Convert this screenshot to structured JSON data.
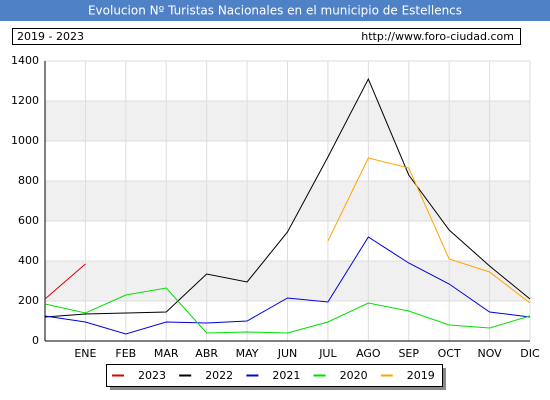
{
  "chart_data": {
    "type": "line",
    "title": "Evolucion Nº Turistas Nacionales en el municipio de Estellencs",
    "subtitle": "2019 - 2023",
    "source": "http://www.foro-ciudad.com",
    "categories": [
      null,
      "ENE",
      "FEB",
      "MAR",
      "ABR",
      "MAY",
      "JUN",
      "JUL",
      "AGO",
      "SEP",
      "OCT",
      "NOV",
      "DIC"
    ],
    "series": [
      {
        "name": "2023",
        "color": "#e00000",
        "values": [
          210,
          385,
          null,
          null,
          null,
          null,
          null,
          null,
          null,
          null,
          null,
          null,
          null
        ]
      },
      {
        "name": "2022",
        "color": "#000000",
        "values": [
          120,
          135,
          140,
          145,
          335,
          295,
          545,
          920,
          1310,
          830,
          555,
          375,
          210
        ]
      },
      {
        "name": "2021",
        "color": "#0000e0",
        "values": [
          125,
          95,
          35,
          95,
          90,
          100,
          215,
          195,
          520,
          390,
          285,
          145,
          120
        ]
      },
      {
        "name": "2020",
        "color": "#00e000",
        "values": [
          185,
          140,
          230,
          265,
          40,
          45,
          40,
          95,
          190,
          150,
          80,
          65,
          125
        ]
      },
      {
        "name": "2019",
        "color": "#ffa500",
        "values": [
          null,
          null,
          null,
          null,
          null,
          null,
          null,
          500,
          915,
          865,
          410,
          345,
          190
        ]
      }
    ],
    "ylim": [
      0,
      1400
    ],
    "yticks": [
      0,
      200,
      400,
      600,
      800,
      1000,
      1200,
      {
        "value": 1400,
        "label": "1400"
      }
    ],
    "grid": true
  }
}
